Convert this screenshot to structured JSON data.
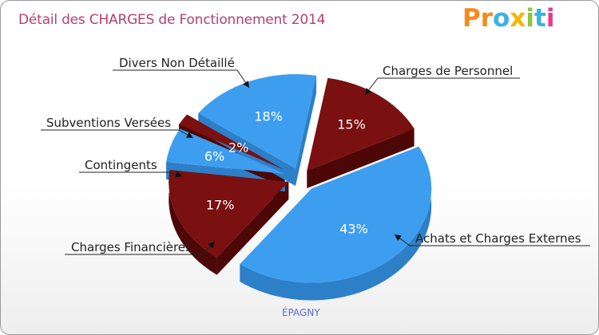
{
  "title": "Détail des CHARGES de Fonctionnement 2014",
  "logo": {
    "letters": [
      "P",
      "r",
      "o",
      "x",
      "i",
      "t",
      "i"
    ],
    "colors": [
      "#f28c1e",
      "#f28c1e",
      "#3bb3e0",
      "#f2b705",
      "#8cc63f",
      "#3bb3e0",
      "#e8398c"
    ]
  },
  "footer": "ÉPAGNY",
  "colors": {
    "blue": "#3d9ef0",
    "blue_side": "#2d7fc8",
    "red": "#7a1010",
    "red_side": "#4e0707"
  },
  "chart_data": {
    "type": "pie",
    "title": "Détail des CHARGES de Fonctionnement 2014",
    "slices": [
      {
        "label": "Charges de Personnel",
        "value": 15,
        "display": "15%",
        "color": "red"
      },
      {
        "label": "Achats et Charges Externes",
        "value": 43,
        "display": "43%",
        "color": "blue"
      },
      {
        "label": "Charges Financières",
        "value": 17,
        "display": "17%",
        "color": "red"
      },
      {
        "label": "Contingents",
        "value": 6,
        "display": "6%",
        "color": "blue"
      },
      {
        "label": "Subventions Versées",
        "value": 2,
        "display": "2%",
        "color": "red"
      },
      {
        "label": "Divers Non Détaillé",
        "value": 18,
        "display": "18%",
        "color": "blue"
      }
    ]
  }
}
